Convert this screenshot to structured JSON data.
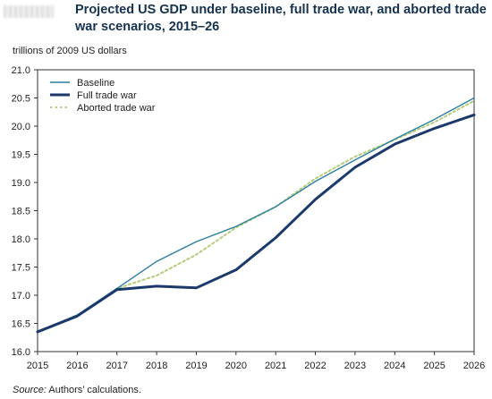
{
  "header": {
    "title": "Projected US GDP under baseline, full trade war, and aborted trade war scenarios, 2015–26"
  },
  "units_label": "trillions of 2009 US dollars",
  "source": {
    "label": "Source:",
    "text": "Authors’ calculations."
  },
  "colors": {
    "baseline": "#2a7f9e",
    "full_trade_war": "#1b3a6b",
    "aborted_trade_war": "#b5cc7a",
    "axis": "#333333"
  },
  "chart_data": {
    "type": "line",
    "title": "Projected US GDP under baseline, full trade war, and aborted trade war scenarios, 2015–26",
    "ylabel": "trillions of 2009 US dollars",
    "xlabel": "",
    "x": [
      2015,
      2016,
      2017,
      2018,
      2019,
      2020,
      2021,
      2022,
      2023,
      2024,
      2025,
      2026
    ],
    "xlim": [
      2015,
      2026
    ],
    "ylim": [
      16.0,
      21.0
    ],
    "yticks": [
      16.0,
      16.5,
      17.0,
      17.5,
      18.0,
      18.5,
      19.0,
      19.5,
      20.0,
      20.5,
      21.0
    ],
    "ytick_labels": [
      "16.0",
      "16.5",
      "17.0",
      "17.5",
      "18.0",
      "18.5",
      "19.0",
      "19.5",
      "20.0",
      "20.5",
      "21.0"
    ],
    "xtick_labels": [
      "2015",
      "2016",
      "2017",
      "2018",
      "2019",
      "2020",
      "2021",
      "2022",
      "2023",
      "2024",
      "2025",
      "2026"
    ],
    "grid": false,
    "legend_position": "top-left",
    "series": [
      {
        "name": "Baseline",
        "style": "solid-thin",
        "values": [
          16.35,
          16.65,
          17.12,
          17.6,
          17.95,
          18.22,
          18.57,
          19.02,
          19.4,
          19.77,
          20.12,
          20.5
        ]
      },
      {
        "name": "Full trade war",
        "style": "solid-thick",
        "values": [
          16.35,
          16.63,
          17.1,
          17.16,
          17.13,
          17.45,
          18.02,
          18.7,
          19.27,
          19.68,
          19.96,
          20.2
        ]
      },
      {
        "name": "Aborted trade war",
        "style": "dotted",
        "values": [
          16.35,
          16.63,
          17.12,
          17.35,
          17.72,
          18.2,
          18.57,
          19.07,
          19.46,
          19.76,
          20.07,
          20.45
        ]
      }
    ]
  }
}
